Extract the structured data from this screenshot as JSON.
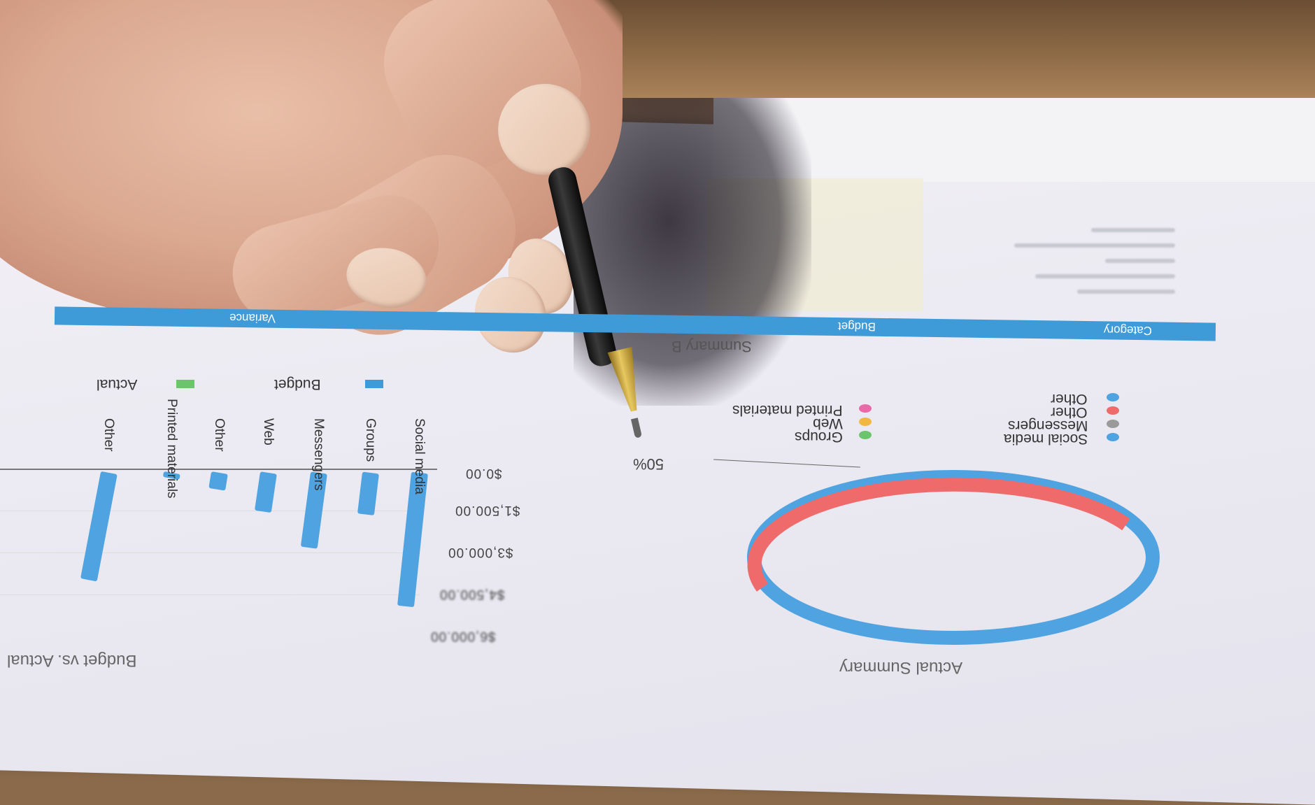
{
  "document": {
    "bar_chart_title": "Budget vs. Actual",
    "donut_title": "Actual Summary",
    "summary_title": "Summary B",
    "table_headers": {
      "category": "Category",
      "budget": "Budget",
      "variance": "Variance"
    },
    "bar_legend": [
      {
        "label": "Budget",
        "color": "#3f9ad8"
      },
      {
        "label": "Actual",
        "color": "#6cc46c"
      }
    ],
    "y_ticks": [
      "$0.00",
      "$1,500.00",
      "$3,000.00",
      "$4,500.00",
      "$6,000.00"
    ],
    "categories": [
      "Social media",
      "Groups",
      "Messengers",
      "Web",
      "Other",
      "Printed materials",
      "Other"
    ],
    "bar_values": [
      4800,
      1500,
      2700,
      1400,
      600,
      100,
      3900
    ],
    "donut_label": "50%",
    "donut_legend_right": [
      {
        "label": "Social media",
        "color": "#4fa3e0"
      },
      {
        "label": "Messengers",
        "color": "#9a9a9a"
      },
      {
        "label": "Other",
        "color": "#ef6b6b"
      },
      {
        "label": "Other",
        "color": "#4fa3e0"
      }
    ],
    "donut_legend_mid": [
      {
        "label": "Groups",
        "color": "#6cc46c"
      },
      {
        "label": "Web",
        "color": "#f0b840"
      },
      {
        "label": "Printed materials",
        "color": "#e86aa8"
      }
    ]
  }
}
